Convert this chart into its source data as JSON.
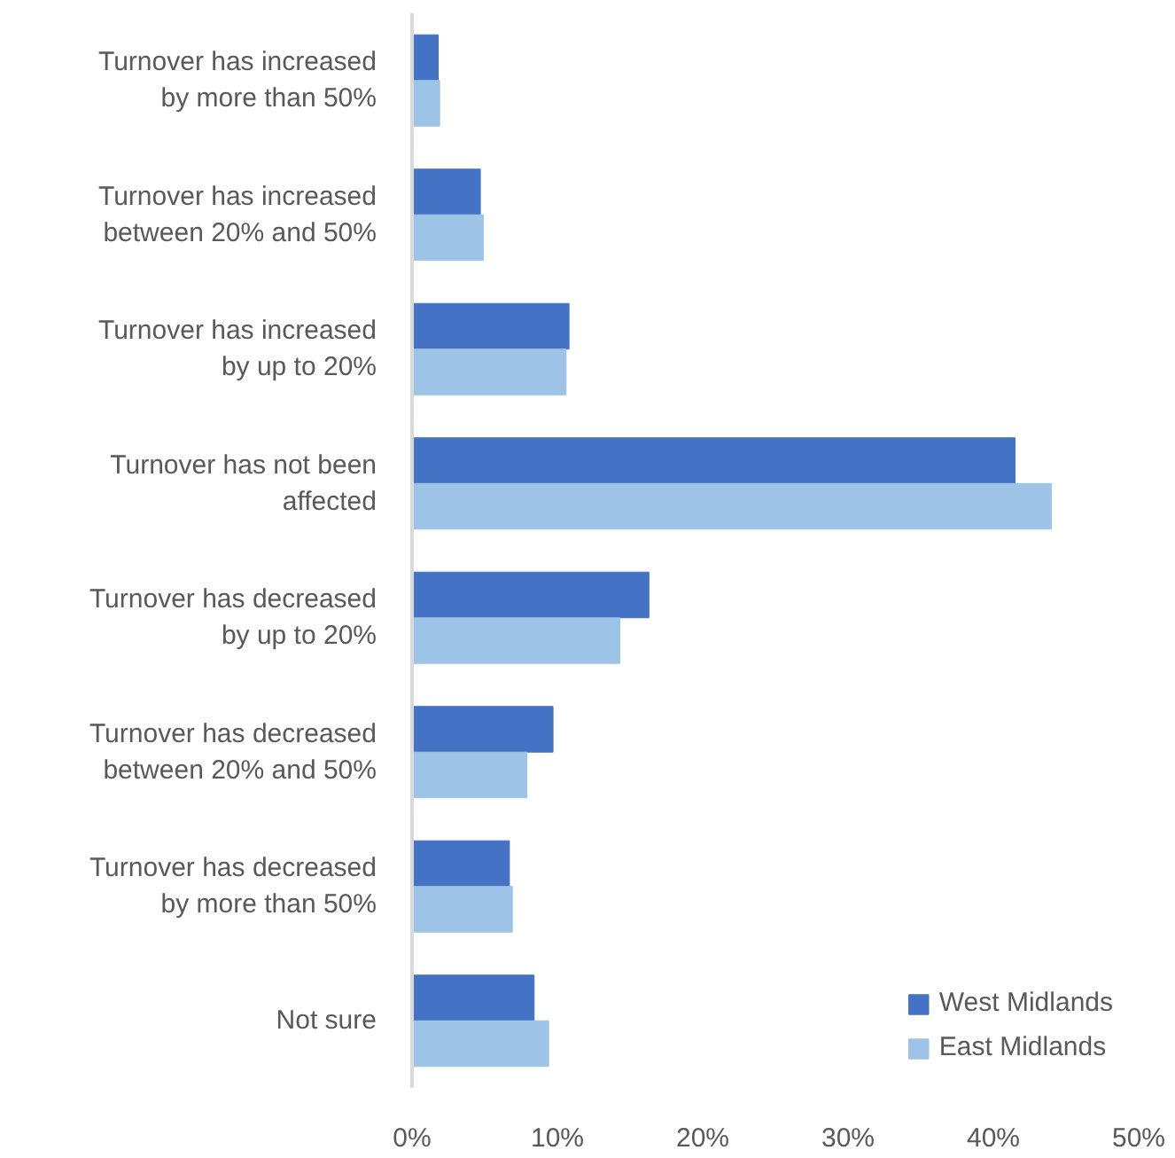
{
  "chart_data": {
    "type": "bar",
    "orientation": "horizontal",
    "categories": [
      "Turnover has increased\nby more than 50%",
      "Turnover has increased\nbetween 20% and 50%",
      "Turnover has increased\nby up to 20%",
      "Turnover has not been\naffected",
      "Turnover has decreased\nby up to 20%",
      "Turnover has decreased\nbetween 20% and 50%",
      "Turnover has decreased\nby more than 50%",
      "Not sure"
    ],
    "series": [
      {
        "name": "West Midlands",
        "color": "#4472c4",
        "values": [
          1.8,
          4.7,
          10.8,
          41.5,
          16.3,
          9.7,
          6.7,
          8.4
        ]
      },
      {
        "name": "East Midlands",
        "color": "#9dc3e6",
        "values": [
          1.9,
          4.9,
          10.6,
          44.0,
          14.3,
          7.9,
          6.9,
          9.4
        ]
      }
    ],
    "xlim": [
      0,
      50
    ],
    "xticks": [
      {
        "value": 0,
        "label": "0%"
      },
      {
        "value": 10,
        "label": "10%"
      },
      {
        "value": 20,
        "label": "20%"
      },
      {
        "value": 30,
        "label": "30%"
      },
      {
        "value": 40,
        "label": "40%"
      },
      {
        "value": 50,
        "label": "50%"
      }
    ],
    "grid": false,
    "legend": "bottom right"
  }
}
